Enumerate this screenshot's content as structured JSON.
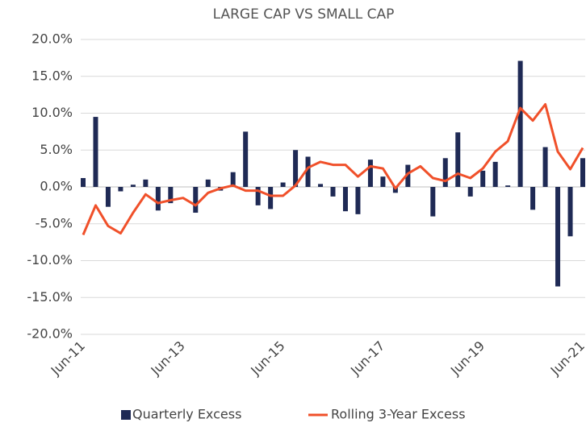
{
  "chart_data": {
    "type": "combo",
    "title": "LARGE CAP VS SMALL CAP",
    "categories": [
      "Jun-11",
      null,
      null,
      null,
      null,
      null,
      null,
      null,
      "Jun-13",
      null,
      null,
      null,
      null,
      null,
      null,
      null,
      "Jun-15",
      null,
      null,
      null,
      null,
      null,
      null,
      null,
      "Jun-17",
      null,
      null,
      null,
      null,
      null,
      null,
      null,
      "Jun-19",
      null,
      null,
      null,
      null,
      null,
      null,
      null,
      "Jun-21"
    ],
    "series": [
      {
        "name": "Quarterly Excess",
        "type": "bar",
        "color": "#1f2a55",
        "values": [
          1.2,
          9.5,
          -2.7,
          -0.6,
          0.3,
          1.0,
          -3.2,
          -2.2,
          0,
          -3.5,
          1.0,
          -0.5,
          2.0,
          7.5,
          -2.5,
          -3.0,
          0.6,
          5.0,
          4.1,
          0.4,
          -1.3,
          -3.3,
          -3.7,
          3.7,
          1.4,
          -0.8,
          3.0,
          0,
          -4.0,
          3.9,
          7.4,
          -1.3,
          2.2,
          3.4,
          0.2,
          17.1,
          -3.1,
          5.4,
          -13.5,
          -6.7,
          3.9
        ]
      },
      {
        "name": "Rolling 3-Year Excess",
        "type": "line",
        "color": "#f0502a",
        "values": [
          -6.5,
          -2.5,
          -5.3,
          -6.3,
          -3.5,
          -1.0,
          -2.2,
          -1.8,
          -1.5,
          -2.5,
          -0.8,
          -0.2,
          0.2,
          -0.5,
          -0.5,
          -1.2,
          -1.2,
          0.2,
          2.6,
          3.4,
          3.0,
          3.0,
          1.4,
          2.8,
          2.5,
          -0.2,
          1.8,
          2.8,
          1.2,
          0.8,
          1.8,
          1.2,
          2.5,
          4.8,
          6.2,
          10.7,
          9.0,
          11.2,
          4.8,
          2.4,
          5.3
        ]
      }
    ],
    "ylim": [
      -20,
      20
    ],
    "yticks": [
      {
        "value": -20,
        "label": "-20.0%"
      },
      {
        "value": -15,
        "label": "-15.0%"
      },
      {
        "value": -10,
        "label": "-10.0%"
      },
      {
        "value": -5,
        "label": "-5.0%"
      },
      {
        "value": 0,
        "label": "0.0%"
      },
      {
        "value": 5,
        "label": "5.0%"
      },
      {
        "value": 10,
        "label": "10.0%"
      },
      {
        "value": 15,
        "label": "15.0%"
      },
      {
        "value": 20,
        "label": "20.0%"
      }
    ],
    "grid": true,
    "legend": "bottom"
  }
}
